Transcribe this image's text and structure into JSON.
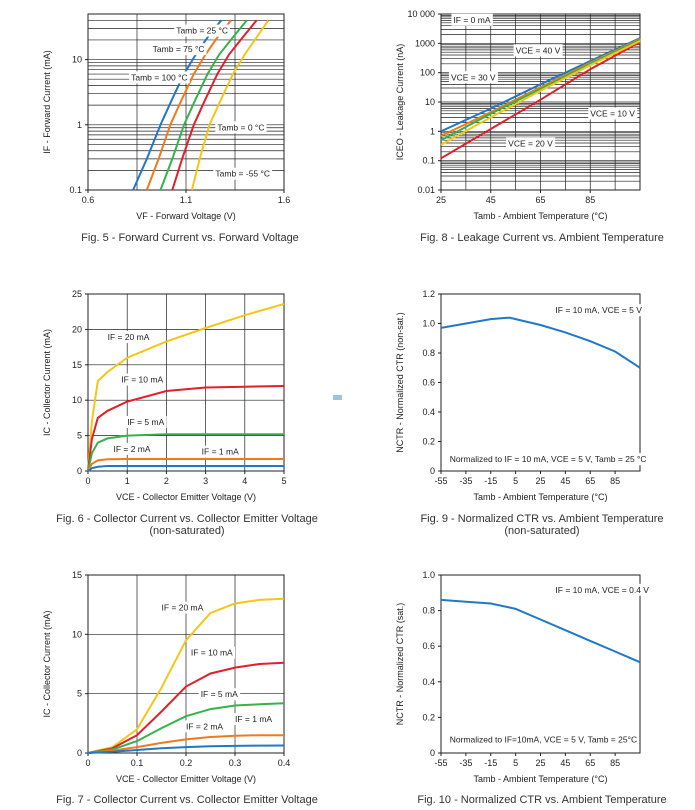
{
  "colors": {
    "blue": "#1f78c8",
    "orange": "#f07a1c",
    "green": "#35b34a",
    "red": "#e0202a",
    "yellow": "#f5c518",
    "grey": "#777777"
  },
  "chart_data": [
    {
      "id": "fig5",
      "type": "line",
      "caption": "Fig. 5 - Forward Current vs. Forward Voltage",
      "xlabel": "VF - Forward Voltage (V)",
      "ylabel": "IF - Forward Current (mA)",
      "xlim": [
        0.6,
        1.6
      ],
      "ylim": [
        0.1,
        50
      ],
      "yscale": "log",
      "xticks": [
        "0.6",
        "1.1",
        "1.6"
      ],
      "yticks": [
        "0.1",
        "1",
        "10"
      ],
      "grid": true,
      "series": [
        {
          "name": "Tamb = 100 °C",
          "color": "blue",
          "x": [
            0.83,
            0.9,
            0.97,
            1.03,
            1.09,
            1.15,
            1.21,
            1.28
          ],
          "y": [
            0.1,
            0.3,
            1,
            2.5,
            6,
            12,
            22,
            40
          ]
        },
        {
          "name": "Tamb = 75 °C",
          "color": "orange",
          "x": [
            0.9,
            0.96,
            1.02,
            1.08,
            1.14,
            1.2,
            1.26,
            1.33
          ],
          "y": [
            0.1,
            0.3,
            1,
            2.5,
            6,
            12,
            22,
            40
          ]
        },
        {
          "name": "Tamb = 25 °C",
          "color": "green",
          "x": [
            0.97,
            1.03,
            1.09,
            1.15,
            1.21,
            1.27,
            1.34,
            1.41
          ],
          "y": [
            0.1,
            0.3,
            1,
            2.5,
            6,
            12,
            22,
            40
          ]
        },
        {
          "name": "Tamb = 0 °C",
          "color": "red",
          "x": [
            1.03,
            1.08,
            1.14,
            1.2,
            1.26,
            1.32,
            1.39,
            1.46
          ],
          "y": [
            0.1,
            0.3,
            1,
            2.5,
            6,
            12,
            22,
            40
          ]
        },
        {
          "name": "Tamb = -55 °C",
          "color": "yellow",
          "x": [
            1.13,
            1.17,
            1.22,
            1.28,
            1.34,
            1.4,
            1.46,
            1.52
          ],
          "y": [
            0.1,
            0.3,
            1,
            2.5,
            6,
            12,
            22,
            40
          ]
        }
      ],
      "annotations": [
        {
          "text": "Tamb = 25 °C",
          "x": 1.05,
          "y": 25
        },
        {
          "text": "Tamb = 75 °C",
          "x": 0.93,
          "y": 13
        },
        {
          "text": "Tamb = 100 °C",
          "x": 0.82,
          "y": 4.8
        },
        {
          "text": "Tamb = 0 °C",
          "x": 1.26,
          "y": 0.82
        },
        {
          "text": "Tamb = -55 °C",
          "x": 1.25,
          "y": 0.16
        }
      ]
    },
    {
      "id": "fig8",
      "type": "line",
      "caption": "Fig. 8 - Leakage Current vs. Ambient Temperature",
      "xlabel": "Tamb - Ambient Temperature (°C)",
      "ylabel": "ICEO - Leakage Current (nA)",
      "xlim": [
        25,
        105
      ],
      "ylim": [
        0.01,
        10000
      ],
      "yscale": "log",
      "xticks": [
        "25",
        "45",
        "65",
        "85"
      ],
      "yticks": [
        "0.01",
        "0.1",
        "1",
        "10",
        "100",
        "1000",
        "10 000"
      ],
      "grid": true,
      "series": [
        {
          "name": "VCE = 10 V",
          "color": "blue",
          "x": [
            25,
            45,
            65,
            85,
            105
          ],
          "y": [
            1,
            6,
            40,
            250,
            1500
          ]
        },
        {
          "name": "VCE = 20 V",
          "color": "orange",
          "x": [
            25,
            45,
            65,
            85,
            105
          ],
          "y": [
            0.7,
            4.5,
            32,
            220,
            1400
          ]
        },
        {
          "name": "VCE = 30 V",
          "color": "green",
          "x": [
            25,
            45,
            65,
            85,
            105
          ],
          "y": [
            0.5,
            4,
            28,
            200,
            1300
          ]
        },
        {
          "name": "VCE = 40 V",
          "color": "red",
          "x": [
            25,
            45,
            65,
            85,
            105
          ],
          "y": [
            0.12,
            1.2,
            12,
            130,
            1100
          ]
        },
        {
          "name": "IF = 0 mA",
          "color": "yellow",
          "x": [
            25,
            45,
            65,
            85,
            105
          ],
          "y": [
            0.35,
            3,
            24,
            180,
            1200
          ]
        }
      ],
      "annotations": [
        {
          "text": "IF = 0 mA",
          "x": 30,
          "y": 5000
        },
        {
          "text": "VCE = 40 V",
          "x": 55,
          "y": 450
        },
        {
          "text": "VCE = 30 V",
          "x": 29,
          "y": 55
        },
        {
          "text": "VCE = 10 V",
          "x": 85,
          "y": 3.2
        },
        {
          "text": "VCE = 20 V",
          "x": 52,
          "y": 0.3
        }
      ]
    },
    {
      "id": "fig6",
      "type": "line",
      "caption": "Fig. 6 - Collector Current vs. Collector Emitter Voltage",
      "caption2": "(non-saturated)",
      "xlabel": "VCE - Collector Emitter Voltage (V)",
      "ylabel": "IC - Collector Current (mA)",
      "xlim": [
        0,
        5
      ],
      "ylim": [
        0,
        25
      ],
      "xticks": [
        "0",
        "1",
        "2",
        "3",
        "4",
        "5"
      ],
      "yticks": [
        "0",
        "5",
        "10",
        "15",
        "20",
        "25"
      ],
      "grid": true,
      "series": [
        {
          "name": "IF = 20 mA",
          "color": "yellow",
          "x": [
            0,
            0.1,
            0.25,
            0.5,
            1,
            2,
            3,
            4,
            5
          ],
          "y": [
            0,
            7,
            12.7,
            14,
            16,
            18.3,
            20.2,
            22,
            23.6
          ]
        },
        {
          "name": "IF = 10 mA",
          "color": "red",
          "x": [
            0,
            0.1,
            0.25,
            0.5,
            1,
            2,
            3,
            4,
            5
          ],
          "y": [
            0,
            4.5,
            7.5,
            8.5,
            9.8,
            11.3,
            11.8,
            11.9,
            12
          ]
        },
        {
          "name": "IF = 5 mA",
          "color": "green",
          "x": [
            0,
            0.1,
            0.25,
            0.5,
            1,
            2,
            3,
            4,
            5
          ],
          "y": [
            0,
            2.5,
            4,
            4.6,
            5,
            5.2,
            5.2,
            5.2,
            5.2
          ]
        },
        {
          "name": "IF = 2 mA",
          "color": "orange",
          "x": [
            0,
            0.1,
            0.25,
            0.5,
            1,
            2,
            3,
            4,
            5
          ],
          "y": [
            0,
            1,
            1.5,
            1.65,
            1.7,
            1.7,
            1.7,
            1.7,
            1.7
          ]
        },
        {
          "name": "IF = 1 mA",
          "color": "blue",
          "x": [
            0,
            0.1,
            0.25,
            0.5,
            1,
            2,
            3,
            4,
            5
          ],
          "y": [
            0,
            0.4,
            0.6,
            0.7,
            0.7,
            0.7,
            0.7,
            0.7,
            0.7
          ]
        }
      ],
      "annotations": [
        {
          "text": "IF = 20 mA",
          "x": 0.5,
          "y": 18.5
        },
        {
          "text": "IF = 10 mA",
          "x": 0.85,
          "y": 12.5
        },
        {
          "text": "IF = 5 mA",
          "x": 1.0,
          "y": 6.5
        },
        {
          "text": "IF = 2 mA",
          "x": 0.65,
          "y": 2.7
        },
        {
          "text": "IF = 1 mA",
          "x": 2.9,
          "y": 2.3
        }
      ]
    },
    {
      "id": "fig9",
      "type": "line",
      "caption": "Fig. 9 - Normalized CTR vs. Ambient Temperature",
      "caption2": "(non-saturated)",
      "xlabel": "Tamb - Ambient Temperature (°C)",
      "ylabel": "NCTR - Normalized CTR (non-sat.)",
      "xlim": [
        -55,
        105
      ],
      "ylim": [
        0,
        1.2
      ],
      "xticks": [
        "-55",
        "-35",
        "-15",
        "5",
        "25",
        "45",
        "65",
        "85"
      ],
      "yticks": [
        "0",
        "0.2",
        "0.4",
        "0.6",
        "0.8",
        "1.0",
        "1.2"
      ],
      "grid": false,
      "series": [
        {
          "name": "",
          "color": "blue",
          "x": [
            -55,
            -35,
            -15,
            0,
            5,
            25,
            45,
            65,
            85,
            105
          ],
          "y": [
            0.97,
            1.0,
            1.03,
            1.04,
            1.03,
            0.99,
            0.94,
            0.88,
            0.81,
            0.7
          ]
        }
      ],
      "annotations": [
        {
          "text": "IF = 10 mA, VCE = 5 V",
          "x": 37,
          "y": 1.07
        },
        {
          "text": "Normalized to IF = 10 mA, VCE = 5 V, Tamb = 25 °C",
          "x": -48,
          "y": 0.06
        }
      ]
    },
    {
      "id": "fig7",
      "type": "line",
      "caption": "Fig. 7 - Collector Current vs. Collector Emitter Voltage",
      "xlabel": "VCE - Collector Emitter Voltage (V)",
      "ylabel": "IC - Collector Current (mA)",
      "xlim": [
        0,
        0.4
      ],
      "ylim": [
        0,
        15
      ],
      "xticks": [
        "0",
        "0.1",
        "0.2",
        "0.3",
        "0.4"
      ],
      "yticks": [
        "0",
        "5",
        "10",
        "15"
      ],
      "grid": true,
      "series": [
        {
          "name": "IF = 20 mA",
          "color": "yellow",
          "x": [
            0,
            0.05,
            0.1,
            0.15,
            0.2,
            0.25,
            0.3,
            0.35,
            0.4
          ],
          "y": [
            0,
            0.5,
            2,
            5.5,
            9.5,
            11.8,
            12.6,
            12.9,
            13
          ]
        },
        {
          "name": "IF = 10 mA",
          "color": "red",
          "x": [
            0,
            0.05,
            0.1,
            0.15,
            0.2,
            0.25,
            0.3,
            0.35,
            0.4
          ],
          "y": [
            0,
            0.4,
            1.5,
            3.5,
            5.6,
            6.7,
            7.2,
            7.5,
            7.6
          ]
        },
        {
          "name": "IF = 5 mA",
          "color": "green",
          "x": [
            0,
            0.05,
            0.1,
            0.15,
            0.2,
            0.25,
            0.3,
            0.35,
            0.4
          ],
          "y": [
            0,
            0.3,
            1,
            2.1,
            3.1,
            3.7,
            4,
            4.1,
            4.2
          ]
        },
        {
          "name": "IF = 2 mA",
          "color": "orange",
          "x": [
            0,
            0.05,
            0.1,
            0.15,
            0.2,
            0.25,
            0.3,
            0.35,
            0.4
          ],
          "y": [
            0,
            0.2,
            0.5,
            0.85,
            1.15,
            1.35,
            1.45,
            1.5,
            1.5
          ]
        },
        {
          "name": "IF = 1 mA",
          "color": "blue",
          "x": [
            0,
            0.05,
            0.1,
            0.15,
            0.2,
            0.25,
            0.3,
            0.35,
            0.4
          ],
          "y": [
            0,
            0.1,
            0.25,
            0.4,
            0.5,
            0.57,
            0.6,
            0.62,
            0.63
          ]
        }
      ],
      "annotations": [
        {
          "text": "IF = 20 mA",
          "x": 0.15,
          "y": 12.0
        },
        {
          "text": "IF = 10 mA",
          "x": 0.21,
          "y": 8.2
        },
        {
          "text": "IF = 5 mA",
          "x": 0.23,
          "y": 4.7
        },
        {
          "text": "IF = 2 mA",
          "x": 0.2,
          "y": 2.0
        },
        {
          "text": "IF = 1 mA",
          "x": 0.3,
          "y": 2.6
        }
      ]
    },
    {
      "id": "fig10",
      "type": "line",
      "caption": "Fig. 10 - Normalized CTR vs. Ambient Temperature",
      "xlabel": "Tamb - Ambient Temperature (°C)",
      "ylabel": "NCTR - Normalized CTR (sat.)",
      "xlim": [
        -55,
        105
      ],
      "ylim": [
        0,
        1.0
      ],
      "xticks": [
        "-55",
        "-35",
        "-15",
        "5",
        "25",
        "45",
        "65",
        "85"
      ],
      "yticks": [
        "0",
        "0.2",
        "0.4",
        "0.6",
        "0.8",
        "1.0"
      ],
      "grid": false,
      "series": [
        {
          "name": "",
          "color": "blue",
          "x": [
            -55,
            -35,
            -15,
            5,
            25,
            45,
            65,
            85,
            105
          ],
          "y": [
            0.86,
            0.85,
            0.84,
            0.81,
            0.75,
            0.69,
            0.63,
            0.57,
            0.51
          ]
        }
      ],
      "annotations": [
        {
          "text": "IF = 10 mA, VCE = 0.4 V",
          "x": 37,
          "y": 0.9
        },
        {
          "text": "Normalized to IF=10mA, VCE = 5 V, Tamb = 25°C",
          "x": -48,
          "y": 0.06
        }
      ]
    }
  ]
}
